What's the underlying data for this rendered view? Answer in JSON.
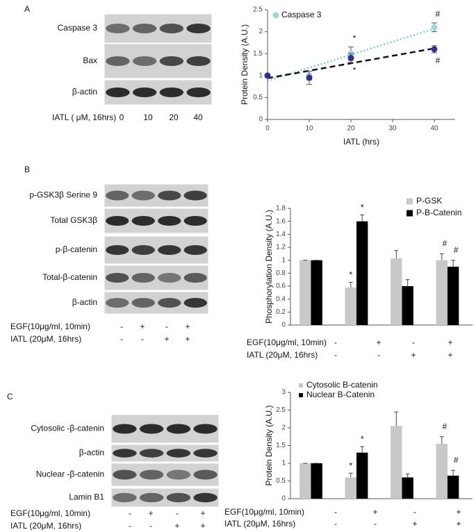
{
  "panels": [
    {
      "letter": "A",
      "blots": [
        "Caspase 3",
        "Bax",
        "β-actin"
      ],
      "lanes": {
        "label": "IATL ( μM, 16hrs)",
        "values": [
          "0",
          "10",
          "20",
          "40"
        ]
      }
    },
    {
      "letter": "B",
      "blots": [
        "p-GSK3β Serine 9",
        "Total GSK3β",
        "p-β-catenin",
        "Total-β-catenin",
        "β-actin"
      ],
      "treatments": [
        {
          "label": "EGF(10μg/ml, 10min)",
          "signs": [
            "-",
            "+",
            "-",
            "+"
          ]
        },
        {
          "label": "IATL  (20μM, 16hrs)",
          "signs": [
            "-",
            "-",
            "+",
            "+"
          ]
        }
      ]
    },
    {
      "letter": "C",
      "blots": [
        "Cytosolic -β-catenin",
        "β-actin",
        "Nuclear -β-catenin",
        "Lamin B1"
      ],
      "treatments": [
        {
          "label": "EGF(10μg/ml, 10min)",
          "signs": [
            "-",
            "+",
            "-",
            "+"
          ]
        },
        {
          "label": "IATL  (20μM, 16hrs)",
          "signs": [
            "-",
            "-",
            "+",
            "+"
          ]
        }
      ]
    }
  ],
  "chart_data": [
    {
      "type": "scatter",
      "x_label": "IATL (hrs)",
      "y_label": "Protein Density (A.U.)",
      "x": [
        0,
        10,
        20,
        40
      ],
      "xlim": [
        0,
        45
      ],
      "xticks": [
        0,
        10,
        20,
        30,
        40
      ],
      "ylim": [
        0,
        2.5
      ],
      "yticks": [
        0,
        0.5,
        1,
        1.5,
        2,
        2.5
      ],
      "legend": "upper left",
      "trendline": true,
      "series": [
        {
          "name": "Caspase 3",
          "color": "#9fd6dc",
          "line_style": "dotted",
          "line_color": "#7fc8d0",
          "values": [
            1,
            1.0,
            1.5,
            2.1
          ],
          "errors": [
            0,
            0.1,
            0.15,
            0.1
          ],
          "annotations": [
            null,
            null,
            "*",
            "#"
          ]
        },
        {
          "color": "#2e3192",
          "line_style": "dashed",
          "line_color": "#111111",
          "values": [
            1,
            0.95,
            1.4,
            1.6
          ],
          "errors": [
            0,
            0.15,
            0.1,
            0.08
          ],
          "annotations": [
            null,
            null,
            "*",
            "#"
          ]
        }
      ]
    },
    {
      "type": "bar",
      "y_label": "Phosphorylation Density (A.U.)",
      "categories": [
        null,
        null,
        null,
        null
      ],
      "ylim": [
        0,
        1.8
      ],
      "yticks": [
        0,
        0.2,
        0.4,
        0.6,
        0.8,
        1,
        1.2,
        1.4,
        1.6,
        1.8
      ],
      "legend": "upper right",
      "font_size": 11,
      "series": [
        {
          "name": "P-GSK",
          "color": "#c8c8c8",
          "values": [
            1,
            0.58,
            1.03,
            1.0
          ],
          "errors": [
            0,
            0.08,
            0.12,
            0.1
          ],
          "annotations": [
            null,
            "*",
            null,
            "#"
          ]
        },
        {
          "name": "P-B-Catenin",
          "color": "#000000",
          "values": [
            1,
            1.6,
            0.6,
            0.9
          ],
          "errors": [
            0,
            0.1,
            0.1,
            0.1
          ],
          "annotations": [
            null,
            "*",
            null,
            "#"
          ]
        }
      ]
    },
    {
      "type": "bar",
      "y_label": "Protein Density (A.U.)",
      "categories": [
        null,
        null,
        null,
        null
      ],
      "ylim": [
        0,
        3
      ],
      "yticks": [
        0,
        0.5,
        1,
        1.5,
        2,
        2.5,
        3
      ],
      "legend": "upper left",
      "font_size": 8,
      "series": [
        {
          "name": "Cytosolic B-catenin",
          "color": "#c8c8c8",
          "values": [
            1,
            0.6,
            2.05,
            1.55
          ],
          "errors": [
            0,
            0.12,
            0.4,
            0.2
          ],
          "annotations": [
            null,
            "*",
            null,
            "#"
          ]
        },
        {
          "name": "Nuclear B-Catenin",
          "color": "#000000",
          "values": [
            1,
            1.3,
            0.6,
            0.65
          ],
          "errors": [
            0,
            0.17,
            0.1,
            0.15
          ],
          "annotations": [
            null,
            "*",
            null,
            "#"
          ]
        }
      ]
    }
  ]
}
